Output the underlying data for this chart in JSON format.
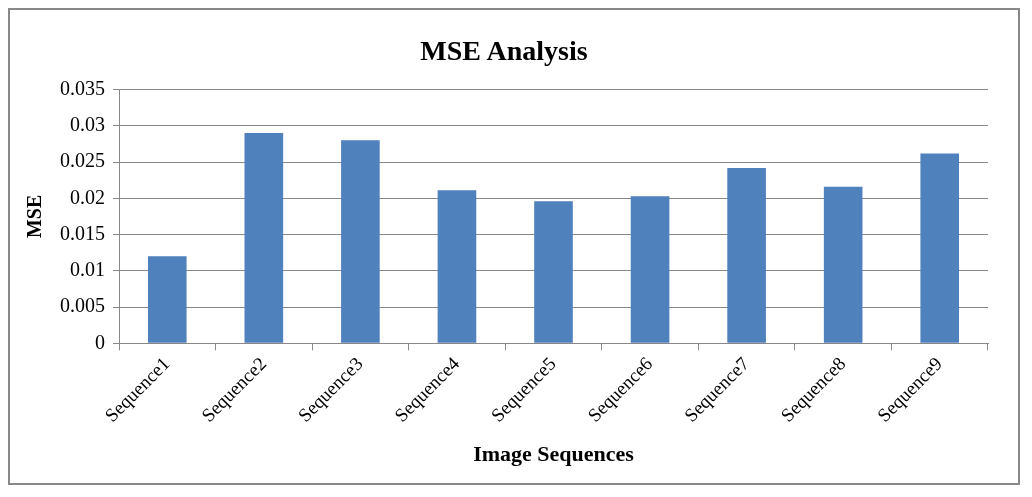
{
  "chart_data": {
    "type": "bar",
    "title": "MSE Analysis",
    "xlabel": "Image Sequences",
    "ylabel": "MSE",
    "categories": [
      "Sequence1",
      "Sequence2",
      "Sequence3",
      "Sequence4",
      "Sequence5",
      "Sequence6",
      "Sequence7",
      "Sequence8",
      "Sequence9"
    ],
    "values": [
      0.012,
      0.029,
      0.028,
      0.0211,
      0.0196,
      0.0203,
      0.0242,
      0.0216,
      0.0262
    ],
    "color": "#4f81bd",
    "ylim": [
      0,
      0.035
    ],
    "yticks": [
      0,
      0.005,
      0.01,
      0.015,
      0.02,
      0.025,
      0.03,
      0.035
    ],
    "grid": "y",
    "legend": false
  }
}
